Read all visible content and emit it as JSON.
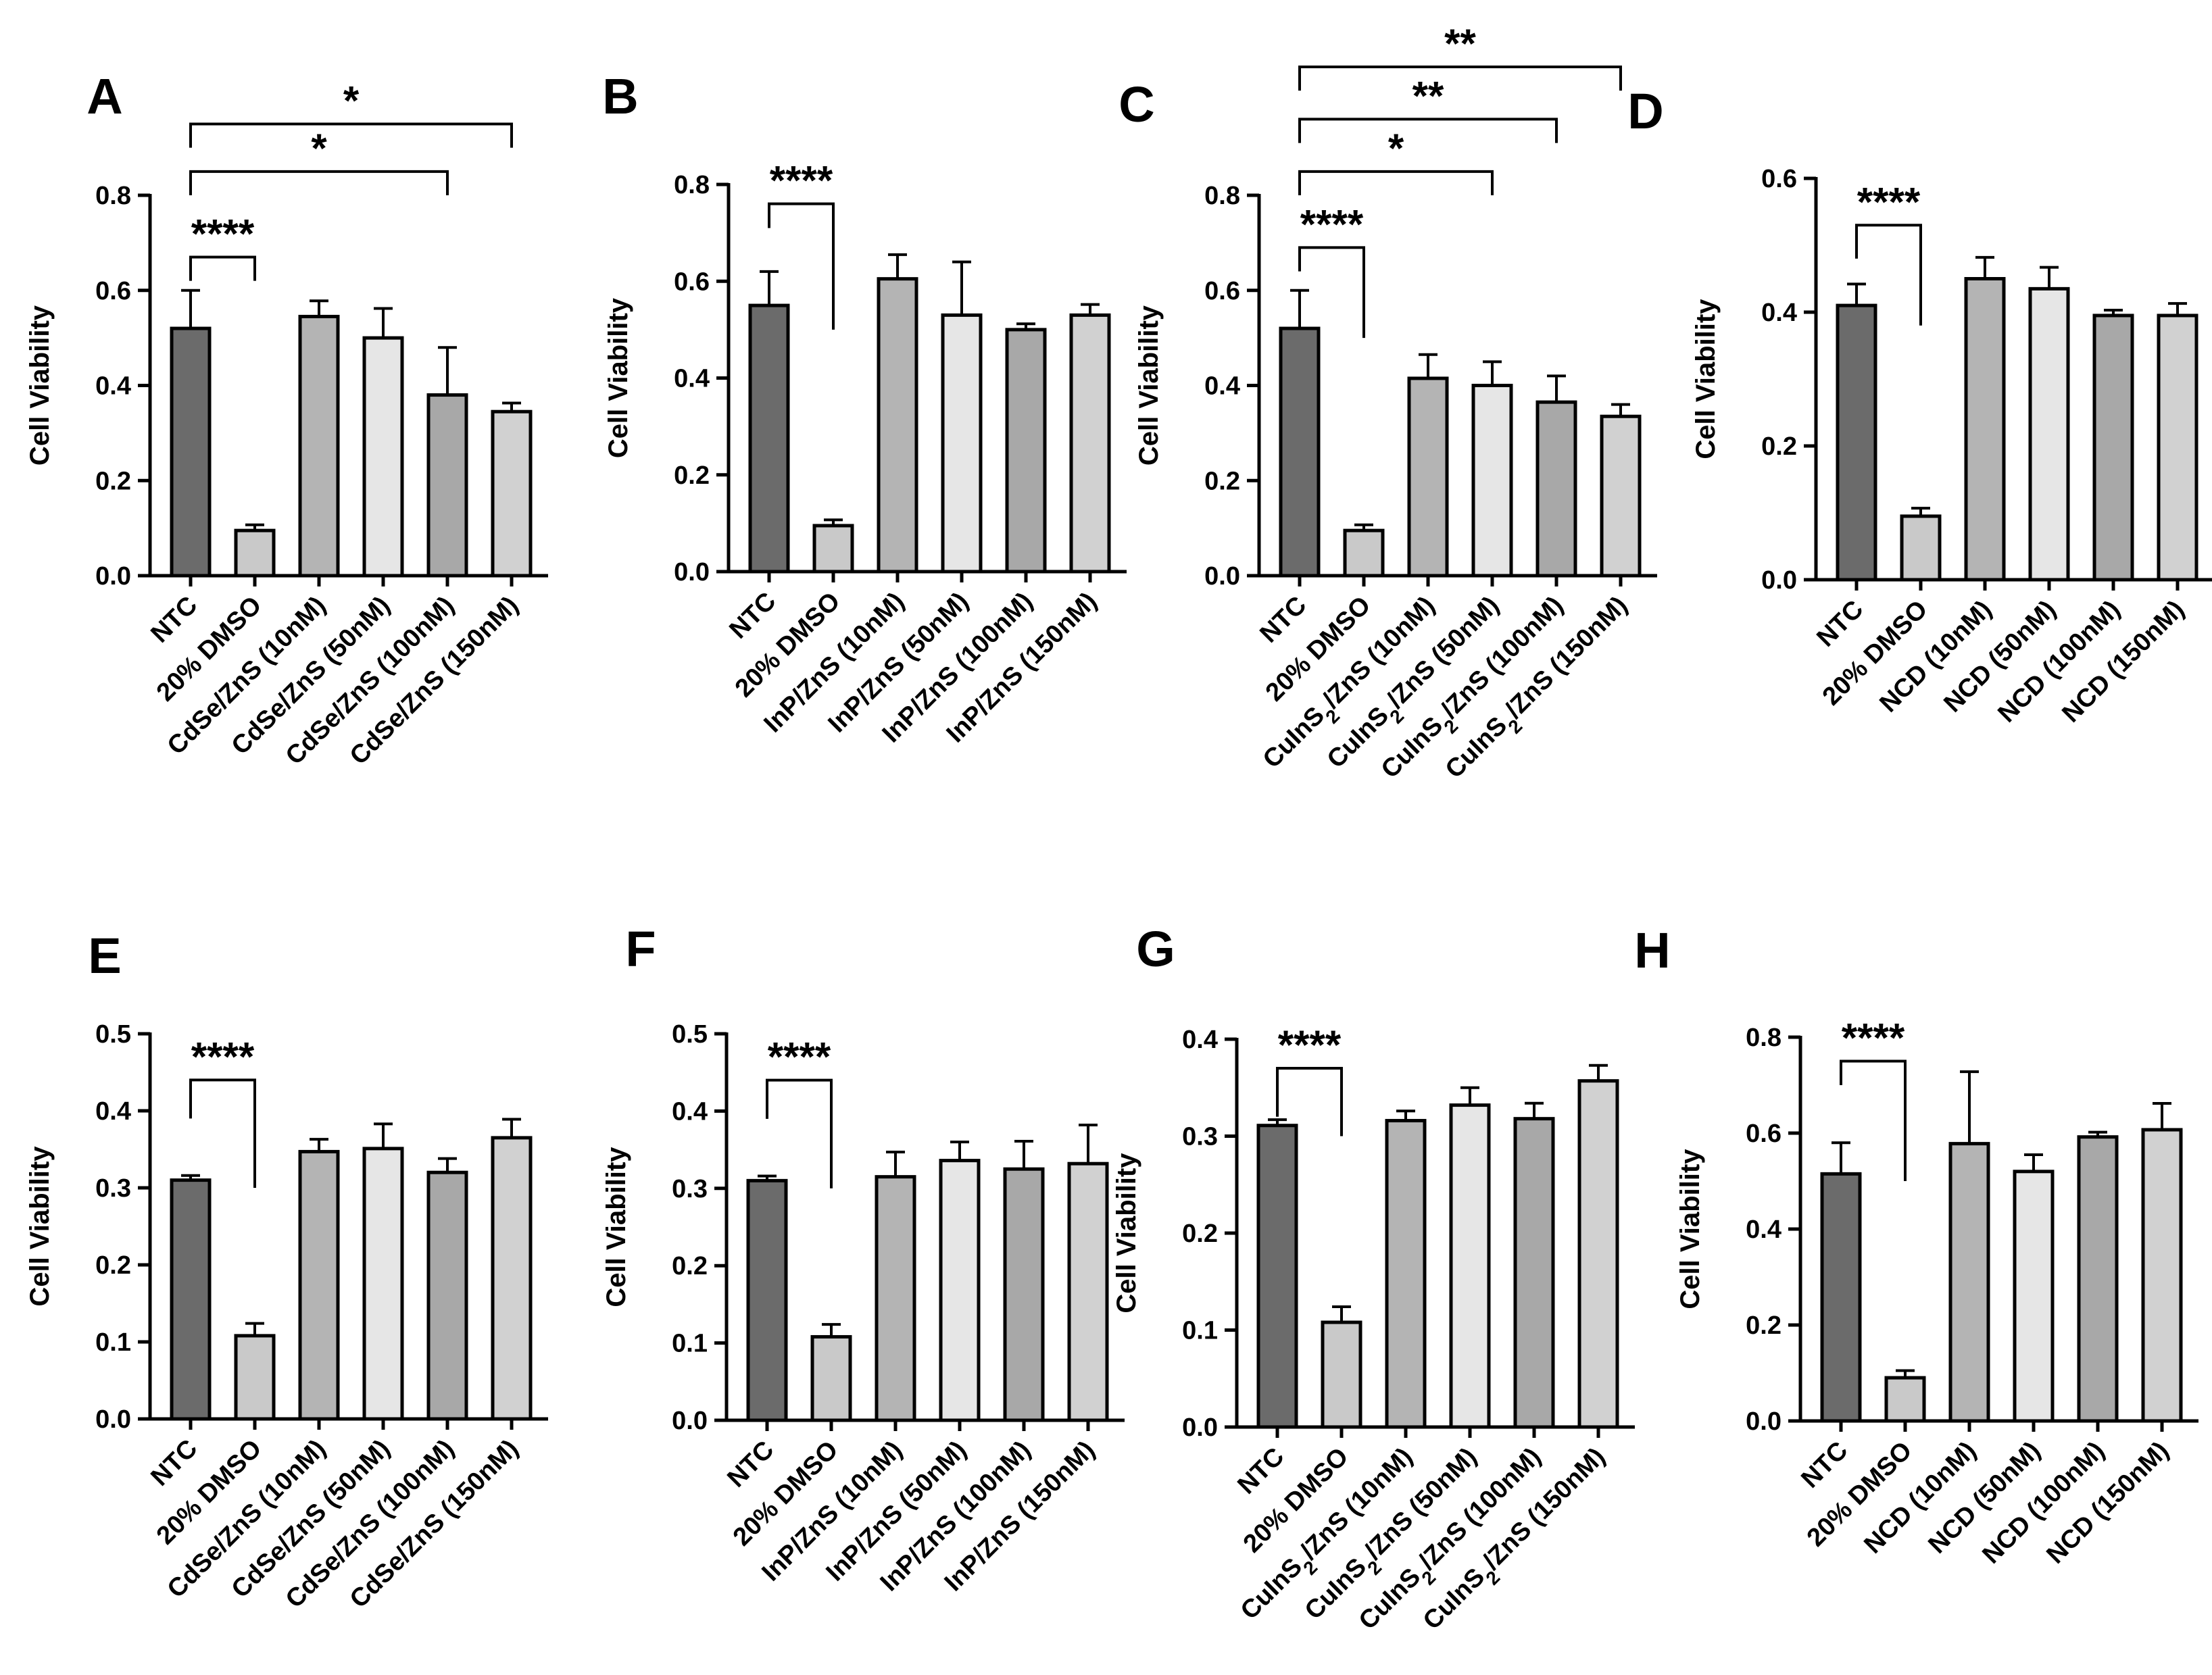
{
  "chart_data": [
    {
      "type": "bar",
      "panel": "A",
      "ylabel": "Cell Viability",
      "ylim": [
        0,
        0.8
      ],
      "yticks": [
        "0.0",
        "0.2",
        "0.4",
        "0.6",
        "0.8"
      ],
      "tick_values": [
        0,
        0.2,
        0.4,
        0.6,
        0.8
      ],
      "categories": [
        [
          "NTC"
        ],
        [
          "20% DMSO"
        ],
        [
          "CdSe/ZnS (10nM)"
        ],
        [
          "CdSe/ZnS (50nM)"
        ],
        [
          "CdSe/ZnS (100nM)"
        ],
        [
          "CdSe/ZnS (150nM)"
        ]
      ],
      "values": [
        0.52,
        0.095,
        0.545,
        0.5,
        0.38,
        0.345
      ],
      "errors": [
        0.08,
        0.012,
        0.033,
        0.062,
        0.1,
        0.018
      ],
      "significance": [
        {
          "from": 0,
          "to": 1,
          "label": "****",
          "y": 0.67
        },
        {
          "from": 0,
          "to": 4,
          "label": "*",
          "y": 0.85
        },
        {
          "from": 0,
          "to": 5,
          "label": "*",
          "y": 0.95
        }
      ]
    },
    {
      "type": "bar",
      "panel": "B",
      "ylabel": "Cell Viability",
      "ylim": [
        0,
        0.8
      ],
      "yticks": [
        "0.0",
        "0.2",
        "0.4",
        "0.6",
        "0.8"
      ],
      "tick_values": [
        0,
        0.2,
        0.4,
        0.6,
        0.8
      ],
      "categories": [
        [
          "NTC"
        ],
        [
          "20% DMSO"
        ],
        [
          "InP/ZnS (10nM)"
        ],
        [
          "InP/ZnS (50nM)"
        ],
        [
          "InP/ZnS (100nM)"
        ],
        [
          "InP/ZnS (150nM)"
        ]
      ],
      "values": [
        0.55,
        0.095,
        0.605,
        0.53,
        0.5,
        0.53
      ],
      "errors": [
        0.07,
        0.012,
        0.05,
        0.11,
        0.012,
        0.022
      ],
      "significance": [
        {
          "from": 0,
          "to": 1,
          "label": "****",
          "y": 0.76,
          "drop_to": 0.5
        }
      ]
    },
    {
      "type": "bar",
      "panel": "C",
      "ylabel": "Cell Viability",
      "ylim": [
        0,
        0.8
      ],
      "yticks": [
        "0.0",
        "0.2",
        "0.4",
        "0.6",
        "0.8"
      ],
      "tick_values": [
        0,
        0.2,
        0.4,
        0.6,
        0.8
      ],
      "categories": [
        [
          "NTC"
        ],
        [
          "20% DMSO"
        ],
        [
          "CuInS",
          "2",
          "/ZnS (10nM)"
        ],
        [
          "CuInS",
          "2",
          "/ZnS (50nM)"
        ],
        [
          "CuInS",
          "2",
          "/ZnS (100nM)"
        ],
        [
          "CuInS",
          "2",
          "/ZnS (150nM)"
        ]
      ],
      "values": [
        0.52,
        0.095,
        0.415,
        0.4,
        0.365,
        0.335
      ],
      "errors": [
        0.08,
        0.012,
        0.05,
        0.05,
        0.055,
        0.025
      ],
      "significance": [
        {
          "from": 0,
          "to": 1,
          "label": "****",
          "y": 0.69,
          "drop_to": 0.5
        },
        {
          "from": 0,
          "to": 3,
          "label": "*",
          "y": 0.85,
          "drop_to": 0.8
        },
        {
          "from": 0,
          "to": 4,
          "label": "**",
          "y": 0.96,
          "drop_to": 0.91
        },
        {
          "from": 0,
          "to": 5,
          "label": "**",
          "y": 1.07,
          "drop_to": 1.02
        }
      ]
    },
    {
      "type": "bar",
      "panel": "D",
      "ylabel": "Cell Viability",
      "ylim": [
        0,
        0.6
      ],
      "yticks": [
        "0.0",
        "0.2",
        "0.4",
        "0.6"
      ],
      "tick_values": [
        0,
        0.2,
        0.4,
        0.6
      ],
      "categories": [
        [
          "NTC"
        ],
        [
          "20% DMSO"
        ],
        [
          "NCD (10nM)"
        ],
        [
          "NCD (50nM)"
        ],
        [
          "NCD (100nM)"
        ],
        [
          "NCD (150nM)"
        ]
      ],
      "values": [
        0.41,
        0.095,
        0.45,
        0.435,
        0.395,
        0.395
      ],
      "errors": [
        0.032,
        0.012,
        0.032,
        0.032,
        0.008,
        0.018
      ],
      "significance": [
        {
          "from": 0,
          "to": 1,
          "label": "****",
          "y": 0.53,
          "drop_to": 0.38
        }
      ]
    },
    {
      "type": "bar",
      "panel": "E",
      "ylabel": "Cell Viability",
      "ylim": [
        0,
        0.5
      ],
      "yticks": [
        "0.0",
        "0.1",
        "0.2",
        "0.3",
        "0.4",
        "0.5"
      ],
      "tick_values": [
        0,
        0.1,
        0.2,
        0.3,
        0.4,
        0.5
      ],
      "categories": [
        [
          "NTC"
        ],
        [
          "20% DMSO"
        ],
        [
          "CdSe/ZnS (10nM)"
        ],
        [
          "CdSe/ZnS (50nM)"
        ],
        [
          "CdSe/ZnS (100nM)"
        ],
        [
          "CdSe/ZnS (150nM)"
        ]
      ],
      "values": [
        0.31,
        0.108,
        0.347,
        0.351,
        0.32,
        0.365
      ],
      "errors": [
        0.006,
        0.016,
        0.016,
        0.032,
        0.018,
        0.024
      ],
      "significance": [
        {
          "from": 0,
          "to": 1,
          "label": "****",
          "y": 0.44,
          "drop_to": 0.3
        }
      ]
    },
    {
      "type": "bar",
      "panel": "F",
      "ylabel": "Cell Viability",
      "ylim": [
        0,
        0.5
      ],
      "yticks": [
        "0.0",
        "0.1",
        "0.2",
        "0.3",
        "0.4",
        "0.5"
      ],
      "tick_values": [
        0,
        0.1,
        0.2,
        0.3,
        0.4,
        0.5
      ],
      "categories": [
        [
          "NTC"
        ],
        [
          "20% DMSO"
        ],
        [
          "InP/ZnS (10nM)"
        ],
        [
          "InP/ZnS (50nM)"
        ],
        [
          "InP/ZnS (100nM)"
        ],
        [
          "InP/ZnS (150nM)"
        ]
      ],
      "values": [
        0.31,
        0.108,
        0.315,
        0.336,
        0.325,
        0.332
      ],
      "errors": [
        0.006,
        0.016,
        0.032,
        0.024,
        0.036,
        0.05
      ],
      "significance": [
        {
          "from": 0,
          "to": 1,
          "label": "****",
          "y": 0.44,
          "drop_to": 0.3
        }
      ]
    },
    {
      "type": "bar",
      "panel": "G",
      "ylabel": "Cell Viability",
      "ylim": [
        0,
        0.4
      ],
      "yticks": [
        "0.0",
        "0.1",
        "0.2",
        "0.3",
        "0.4"
      ],
      "tick_values": [
        0,
        0.1,
        0.2,
        0.3,
        0.4
      ],
      "categories": [
        [
          "NTC"
        ],
        [
          "20% DMSO"
        ],
        [
          "CuInS",
          "2",
          "/ZnS (10nM)"
        ],
        [
          "CuInS",
          "2",
          "/ZnS (50nM)"
        ],
        [
          "CuInS",
          "2",
          "/ZnS (100nM)"
        ],
        [
          "CuInS",
          "2",
          "/ZnS (150nM)"
        ]
      ],
      "values": [
        0.311,
        0.108,
        0.316,
        0.332,
        0.318,
        0.357
      ],
      "errors": [
        0.006,
        0.016,
        0.01,
        0.018,
        0.016,
        0.016
      ],
      "significance": [
        {
          "from": 0,
          "to": 1,
          "label": "****",
          "y": 0.37,
          "drop_to": 0.3
        }
      ]
    },
    {
      "type": "bar",
      "panel": "H",
      "ylabel": "Cell Viability",
      "ylim": [
        0,
        0.8
      ],
      "yticks": [
        "0.0",
        "0.2",
        "0.4",
        "0.6",
        "0.8"
      ],
      "tick_values": [
        0,
        0.2,
        0.4,
        0.6,
        0.8
      ],
      "categories": [
        [
          "NTC"
        ],
        [
          "20% DMSO"
        ],
        [
          "NCD (10nM)"
        ],
        [
          "NCD (50nM)"
        ],
        [
          "NCD (100nM)"
        ],
        [
          "NCD (150nM)"
        ]
      ],
      "values": [
        0.515,
        0.09,
        0.578,
        0.52,
        0.592,
        0.607
      ],
      "errors": [
        0.065,
        0.015,
        0.15,
        0.035,
        0.01,
        0.055
      ],
      "significance": [
        {
          "from": 0,
          "to": 1,
          "label": "****",
          "y": 0.75,
          "drop_to": 0.5
        }
      ]
    }
  ],
  "bar_colors": [
    "#6b6b6b",
    "#c9c9c9",
    "#b4b4b4",
    "#e6e6e6",
    "#a8a8a8",
    "#d1d1d1"
  ]
}
